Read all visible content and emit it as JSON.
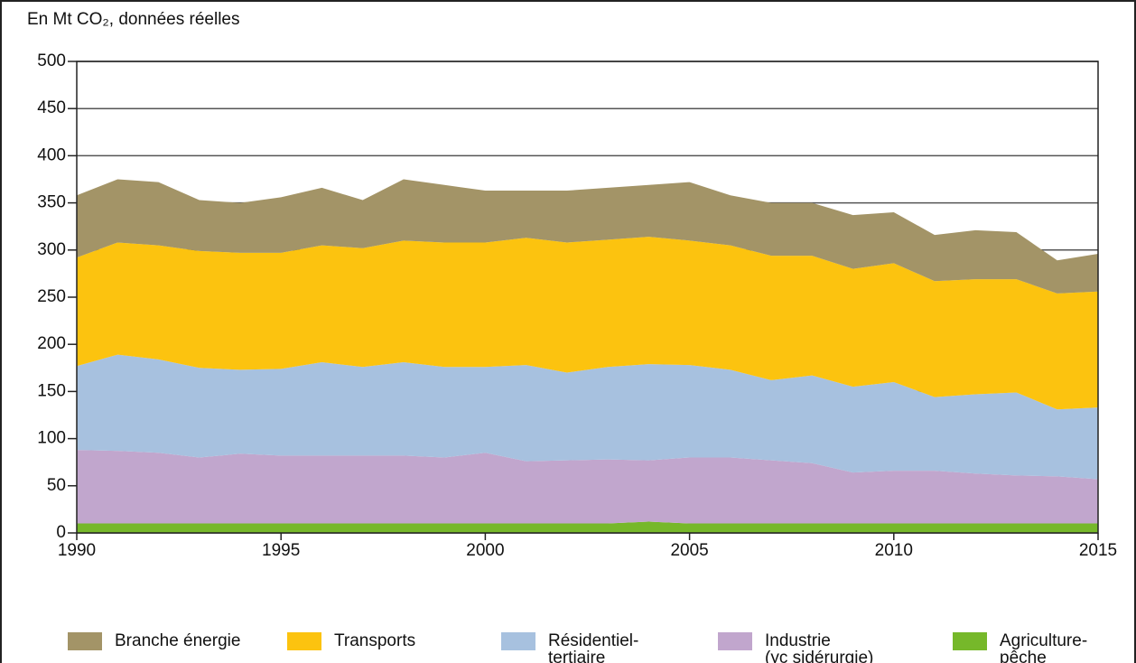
{
  "chart_data": {
    "type": "stacked_area",
    "title": "En Mt CO₂, données réelles",
    "x": [
      1990,
      1991,
      1992,
      1993,
      1994,
      1995,
      1996,
      1997,
      1998,
      1999,
      2000,
      2001,
      2002,
      2003,
      2004,
      2005,
      2006,
      2007,
      2008,
      2009,
      2010,
      2011,
      2012,
      2013,
      2014,
      2015
    ],
    "xlim": [
      1990,
      2015
    ],
    "xticks": [
      1990,
      1995,
      2000,
      2005,
      2010,
      2015
    ],
    "ylim": [
      0,
      500
    ],
    "yticks": [
      0,
      50,
      100,
      150,
      200,
      250,
      300,
      350,
      400,
      450,
      500
    ],
    "grid": true,
    "series": [
      {
        "name": "Agriculture-\npêche",
        "color": "#76b82a",
        "values": [
          10,
          10,
          10,
          10,
          10,
          10,
          10,
          10,
          10,
          10,
          10,
          10,
          10,
          10,
          12,
          10,
          10,
          10,
          10,
          10,
          10,
          10,
          10,
          10,
          10,
          10
        ]
      },
      {
        "name": "Industrie\n(yc sidérurgie)",
        "color": "#c1a6cd",
        "values": [
          78,
          77,
          75,
          70,
          74,
          72,
          72,
          72,
          72,
          70,
          75,
          66,
          67,
          68,
          65,
          70,
          70,
          67,
          64,
          54,
          56,
          56,
          53,
          51,
          50,
          47
        ]
      },
      {
        "name": "Résidentiel-\ntertiaire",
        "color": "#a7c1df",
        "values": [
          89,
          102,
          99,
          95,
          89,
          92,
          99,
          94,
          99,
          96,
          91,
          102,
          93,
          98,
          102,
          98,
          93,
          85,
          93,
          91,
          94,
          78,
          84,
          88,
          71,
          76
        ]
      },
      {
        "name": "Transports",
        "color": "#fcc30f",
        "values": [
          115,
          119,
          121,
          124,
          124,
          123,
          124,
          126,
          129,
          132,
          132,
          135,
          138,
          135,
          135,
          132,
          132,
          132,
          127,
          125,
          126,
          123,
          122,
          120,
          123,
          123
        ]
      },
      {
        "name": "Branche énergie",
        "color": "#a39467",
        "values": [
          66,
          67,
          67,
          54,
          53,
          59,
          61,
          51,
          65,
          61,
          55,
          50,
          55,
          55,
          55,
          62,
          53,
          56,
          56,
          57,
          54,
          49,
          52,
          50,
          35,
          40
        ]
      }
    ]
  }
}
